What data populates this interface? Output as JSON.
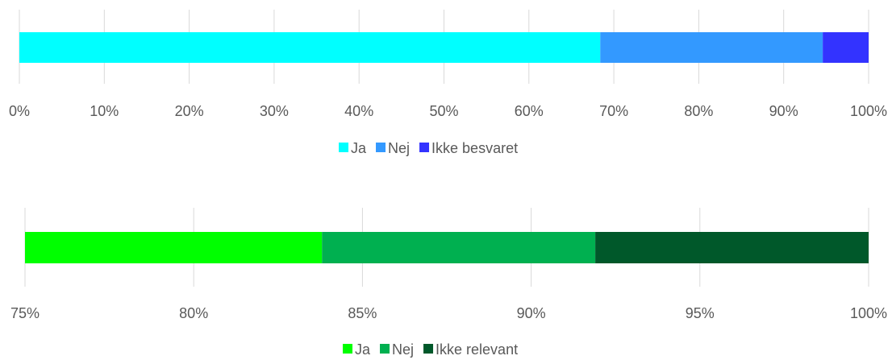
{
  "chart_data": [
    {
      "type": "bar",
      "orientation": "horizontal",
      "stacked": true,
      "xlim": [
        0,
        100
      ],
      "tick_labels": [
        "0%",
        "10%",
        "20%",
        "30%",
        "40%",
        "50%",
        "60%",
        "70%",
        "80%",
        "90%",
        "100%"
      ],
      "series": [
        {
          "name": "Ja",
          "value": 68.4,
          "color": "#00ffff"
        },
        {
          "name": "Nej",
          "value": 26.2,
          "color": "#3399ff"
        },
        {
          "name": "Ikke besvaret",
          "value": 5.4,
          "color": "#3333ff"
        }
      ],
      "grid": true,
      "legend_position": "bottom"
    },
    {
      "type": "bar",
      "orientation": "horizontal",
      "stacked": true,
      "xlim": [
        75,
        100
      ],
      "tick_labels": [
        "75%",
        "80%",
        "85%",
        "90%",
        "95%",
        "100%"
      ],
      "series": [
        {
          "name": "Ja",
          "value": 8.8,
          "color": "#00ff00"
        },
        {
          "name": "Nej",
          "value": 8.1,
          "color": "#00b050"
        },
        {
          "name": "Ikke relevant",
          "value": 8.1,
          "color": "#00582a"
        }
      ],
      "grid": true,
      "legend_position": "bottom"
    }
  ]
}
